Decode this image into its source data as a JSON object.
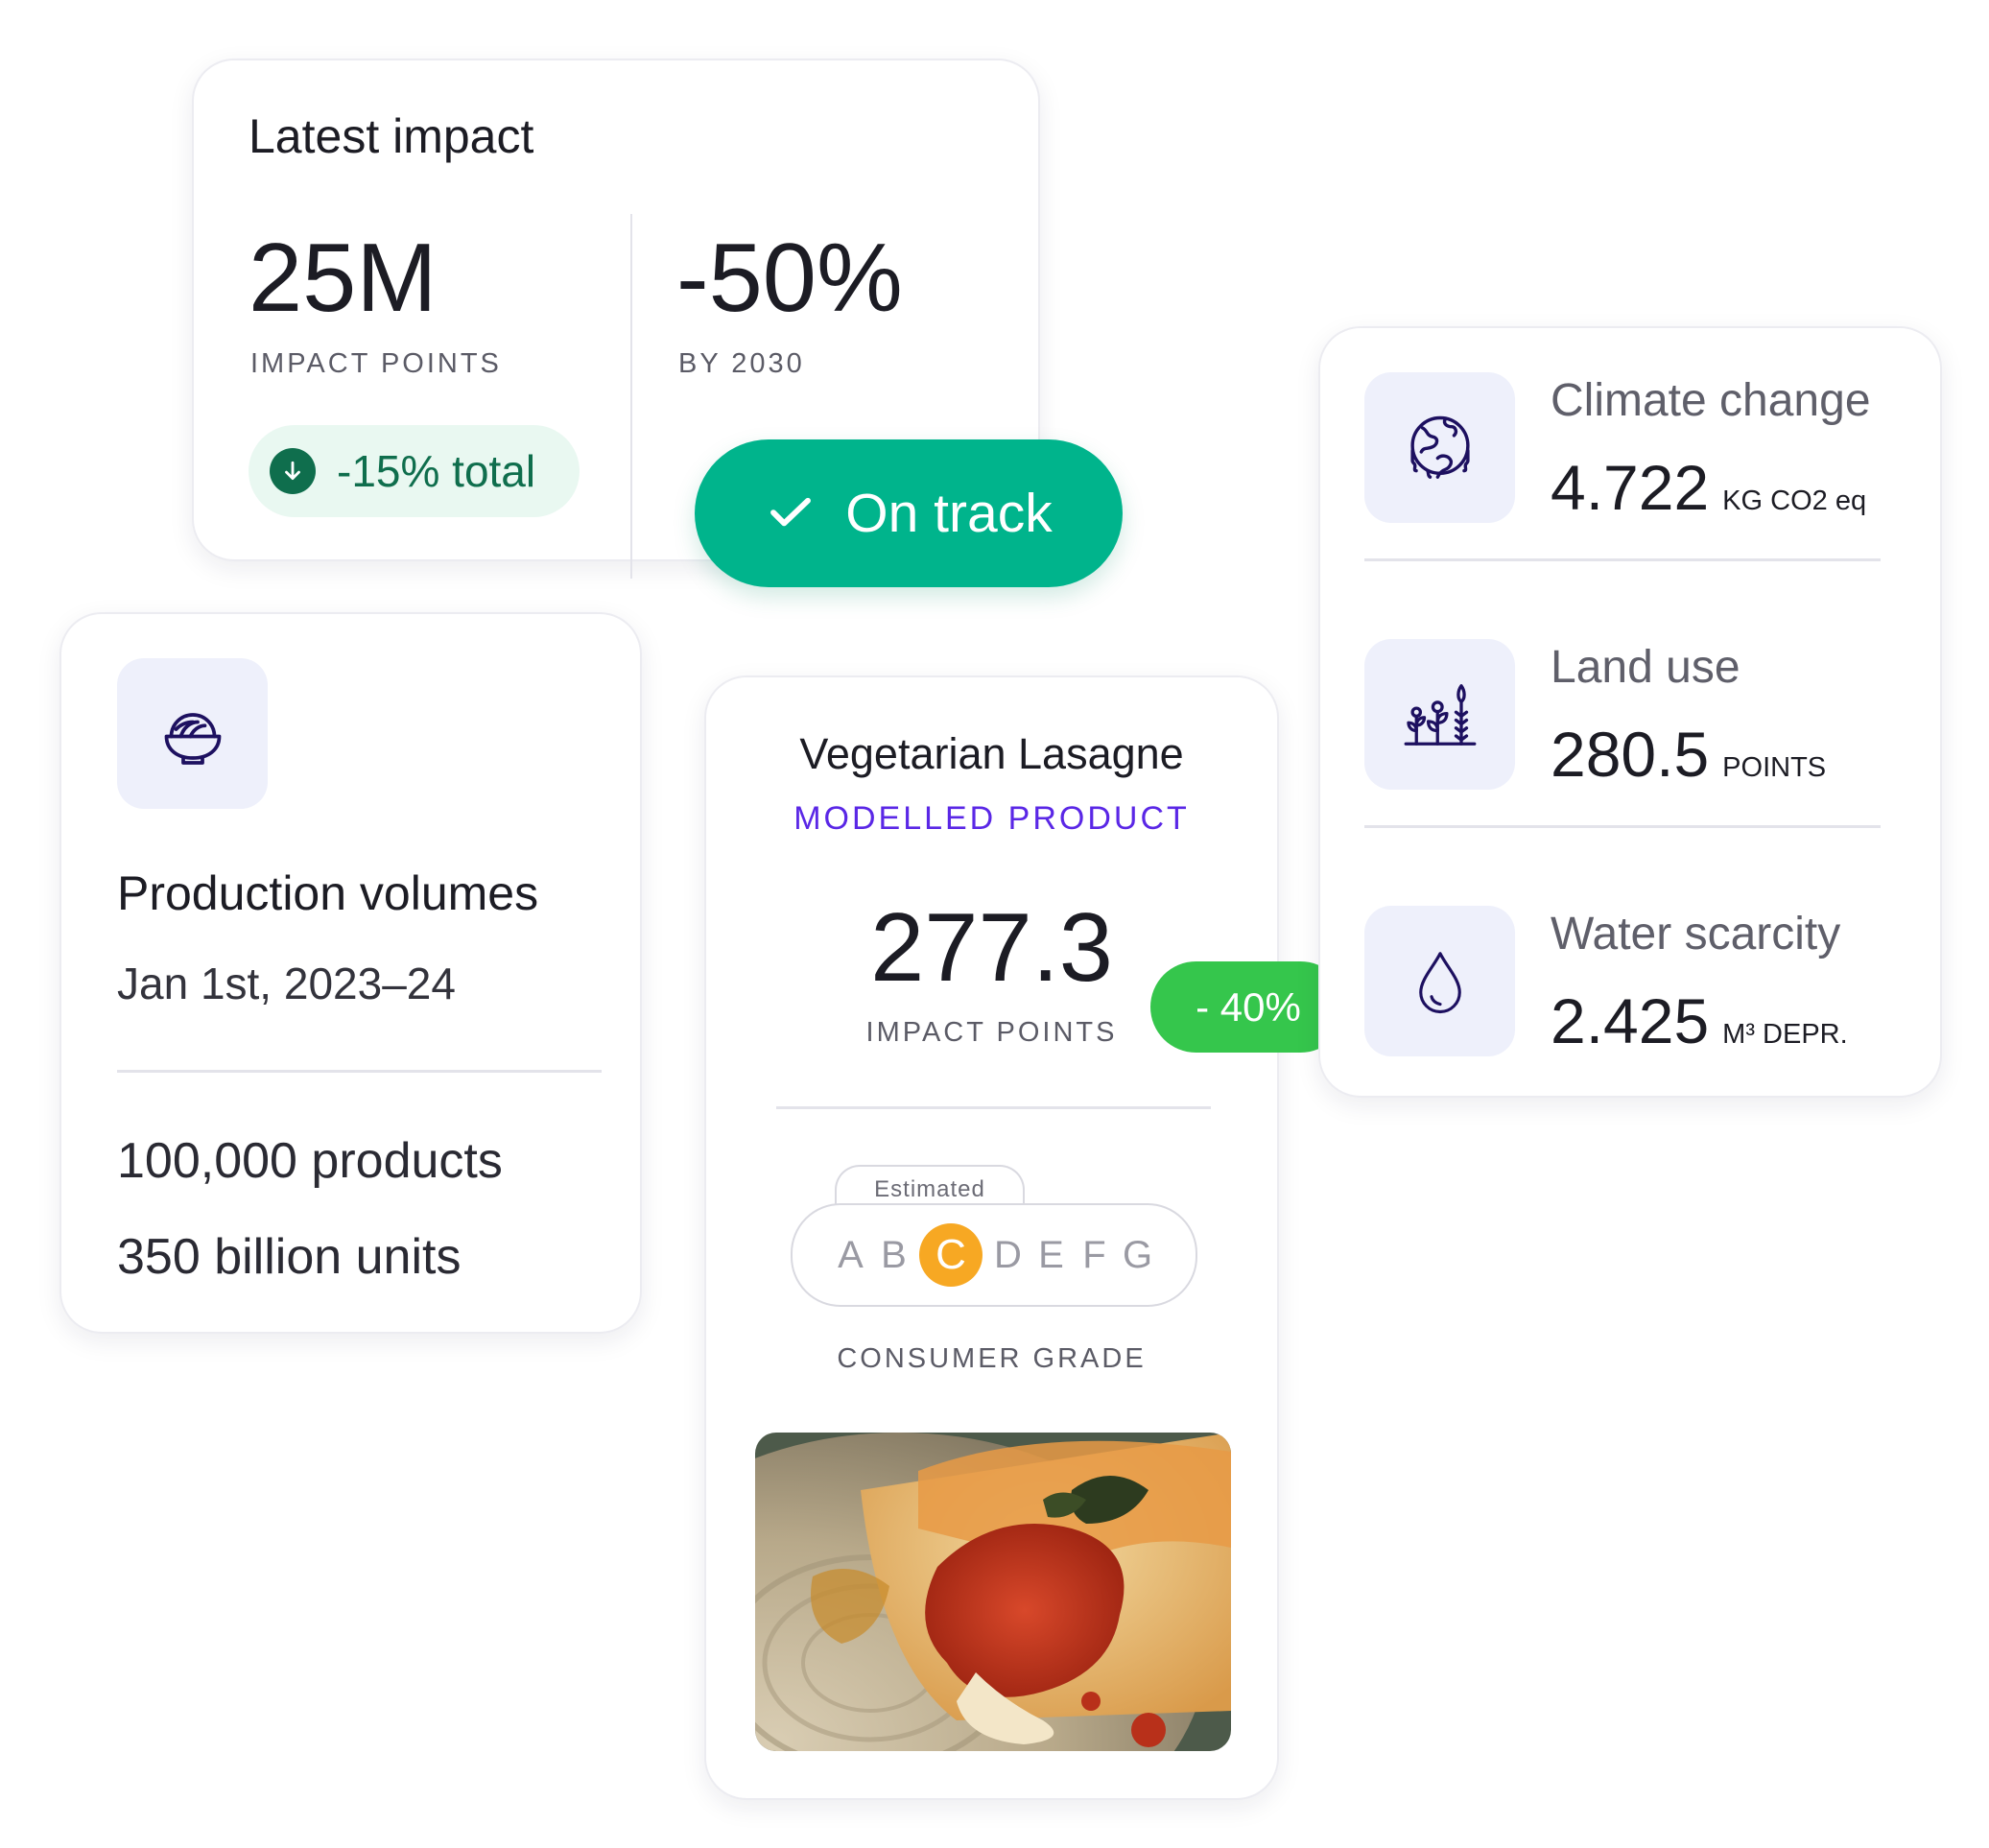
{
  "latest_impact": {
    "title": "Latest impact",
    "stat1_value": "25M",
    "stat1_label": "IMPACT POINTS",
    "stat2_value": "-50%",
    "stat2_label": "BY 2030",
    "change_pill": "-15% total"
  },
  "on_track": {
    "label": "On track"
  },
  "production": {
    "title": "Production volumes",
    "date": "Jan 1st, 2023–24",
    "products": "100,000 products",
    "units": "350 billion units"
  },
  "product": {
    "name": "Vegetarian Lasagne",
    "subtitle": "MODELLED PRODUCT",
    "value": "277.3",
    "value_label": "IMPACT POINTS",
    "grade_tab": "Estimated",
    "grades": [
      "A",
      "B",
      "C",
      "D",
      "E",
      "F",
      "G"
    ],
    "active_grade": "C",
    "grade_label": "CONSUMER GRADE"
  },
  "delta": {
    "label": "- 40%"
  },
  "metrics": [
    {
      "name": "Climate change",
      "value": "4.722",
      "unit": "KG CO2 eq",
      "icon": "globe-icon"
    },
    {
      "name": "Land use",
      "value": "280.5",
      "unit": "POINTS",
      "icon": "plants-icon"
    },
    {
      "name": "Water scarcity",
      "value": "2.425",
      "unit": "M³ DEPR.",
      "icon": "water-drop-icon"
    }
  ],
  "colors": {
    "accent_green": "#00b48c",
    "pill_green": "#35c64c",
    "dark_green": "#0f6e4d",
    "purple": "#5a27e6",
    "grade_orange": "#f7a823",
    "icon_bg": "#eef0fb"
  }
}
